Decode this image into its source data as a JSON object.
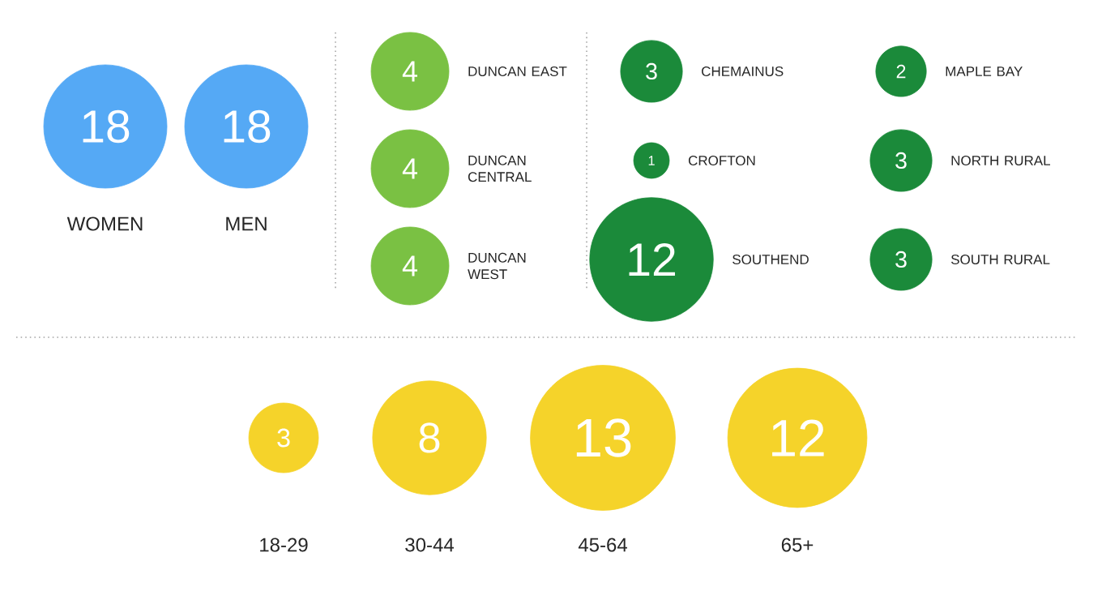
{
  "chart_data": [
    {
      "type": "other",
      "categories": [
        "WOMEN",
        "MEN"
      ],
      "values": [
        18,
        18
      ],
      "color": "#55a9f5",
      "data_labels": true
    },
    {
      "type": "other",
      "categories": [
        "DUNCAN EAST",
        "DUNCAN CENTRAL",
        "DUNCAN WEST"
      ],
      "values": [
        4,
        4,
        4
      ],
      "color": "#7ac143",
      "data_labels": true
    },
    {
      "type": "other",
      "categories": [
        "CHEMAINUS",
        "MAPLE BAY",
        "CROFTON",
        "NORTH RURAL",
        "SOUTHEND",
        "SOUTH RURAL"
      ],
      "values": [
        3,
        2,
        1,
        3,
        12,
        3
      ],
      "color": "#1b8a3a",
      "data_labels": true
    },
    {
      "type": "other",
      "categories": [
        "18-29",
        "30-44",
        "45-64",
        "65+"
      ],
      "values": [
        3,
        8,
        13,
        12
      ],
      "color": "#f5d32a",
      "data_labels": true
    }
  ]
}
